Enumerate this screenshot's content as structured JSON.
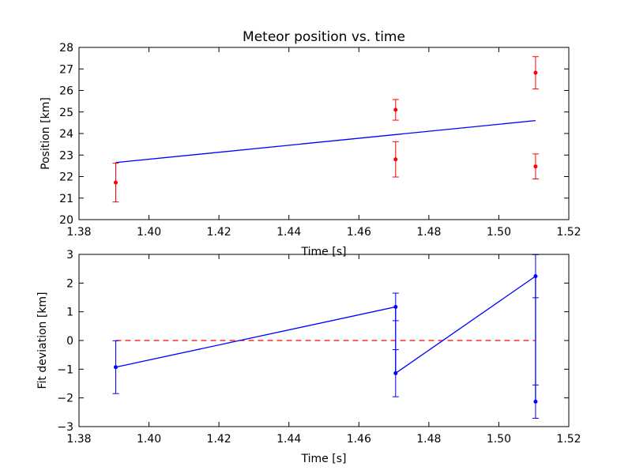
{
  "chart_data": [
    {
      "type": "scatter",
      "title": "Meteor position vs. time",
      "xlabel": "Time [s]",
      "ylabel": "Position [km]",
      "xlim": [
        1.38,
        1.52
      ],
      "ylim": [
        20,
        28
      ],
      "xticks": [
        "1.38",
        "1.40",
        "1.42",
        "1.44",
        "1.46",
        "1.48",
        "1.50",
        "1.52"
      ],
      "yticks": [
        "20",
        "21",
        "22",
        "23",
        "24",
        "25",
        "26",
        "27",
        "28"
      ],
      "grid": false,
      "colors": {
        "points": "#ff0000",
        "fit": "#0000ff"
      },
      "points": [
        {
          "x": 1.3905,
          "y": 21.72,
          "err": 0.9
        },
        {
          "x": 1.4705,
          "y": 25.1,
          "err": 0.48
        },
        {
          "x": 1.4705,
          "y": 22.8,
          "err": 0.82
        },
        {
          "x": 1.5105,
          "y": 26.82,
          "err": 0.75
        },
        {
          "x": 1.5105,
          "y": 22.47,
          "err": 0.58
        }
      ],
      "fit_line": [
        {
          "x": 1.3905,
          "y": 22.65
        },
        {
          "x": 1.5105,
          "y": 24.6
        }
      ]
    },
    {
      "type": "line",
      "title": "",
      "xlabel": "Time [s]",
      "ylabel": "Fit deviation [km]",
      "xlim": [
        1.38,
        1.52
      ],
      "ylim": [
        -3,
        3
      ],
      "xticks": [
        "1.38",
        "1.40",
        "1.42",
        "1.44",
        "1.46",
        "1.48",
        "1.50",
        "1.52"
      ],
      "yticks": [
        "−3",
        "−2",
        "−1",
        "0",
        "1",
        "2",
        "3"
      ],
      "grid": false,
      "colors": {
        "series": "#0000ff",
        "zero_line": "#ff0000"
      },
      "points": [
        {
          "x": 1.3905,
          "y": -0.93,
          "err": 0.92
        },
        {
          "x": 1.4705,
          "y": 1.17,
          "err": 0.48
        },
        {
          "x": 1.4705,
          "y": -1.14,
          "err": 0.82
        },
        {
          "x": 1.5105,
          "y": 2.24,
          "err": 0.75
        },
        {
          "x": 1.5105,
          "y": -2.13,
          "err": 0.58
        }
      ],
      "zero_line": {
        "x": [
          1.3905,
          1.5105
        ],
        "y": 0
      }
    }
  ]
}
